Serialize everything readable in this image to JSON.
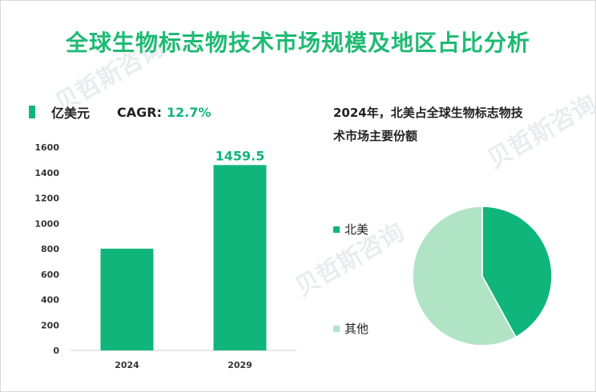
{
  "title": "全球生物标志物技术市场规模及地区占比分析",
  "watermark": "贝哲斯咨询",
  "bar_legend": {
    "unit": "亿美元",
    "cagr_label": "CAGR:",
    "cagr_value": "12.7%"
  },
  "pie_title_line1": "2024年，北美占全球生物标志物技",
  "pie_title_line2": "术市场主要份额",
  "colors": {
    "title": "#1fba74",
    "bar": "#10b57c",
    "north_america": "#10b57c",
    "other": "#b1e4c5"
  },
  "chart_data": [
    {
      "type": "bar",
      "categories": [
        "2024",
        "2029"
      ],
      "values": [
        801,
        1459.5
      ],
      "data_labels": [
        "",
        "1459.5"
      ],
      "ylim": [
        0,
        1600
      ],
      "yticks": [
        0,
        200,
        400,
        600,
        800,
        1000,
        1200,
        1400,
        1600
      ],
      "xlabel": "",
      "ylabel": "",
      "grid": false
    },
    {
      "type": "pie",
      "labels": [
        "北美",
        "其他"
      ],
      "values": [
        42,
        58
      ],
      "legend": "left"
    }
  ]
}
